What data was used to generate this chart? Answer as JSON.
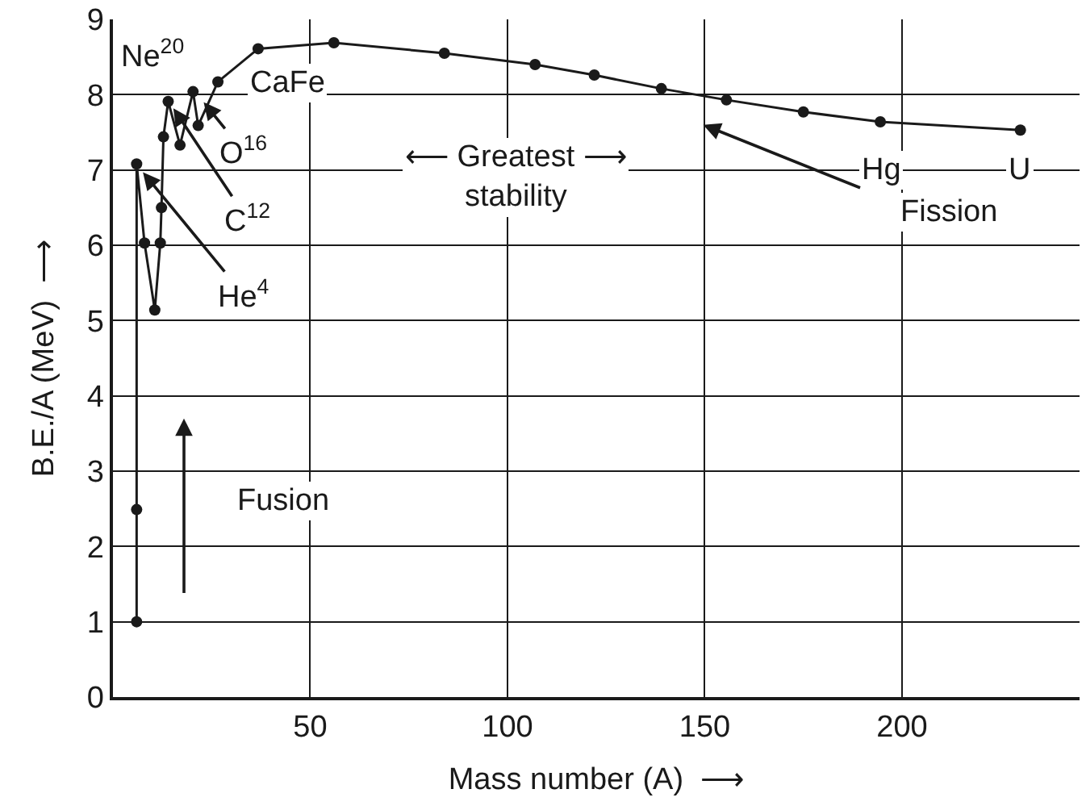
{
  "chart_data": {
    "type": "line",
    "xlabel": "Mass number (A)  ⟶",
    "ylabel": "B.E./A (MeV)  ⟶",
    "marker": "circle",
    "line_style": "solid",
    "grid": true,
    "x": [
      6,
      6,
      6,
      8,
      10.6,
      12,
      12.3,
      12.8,
      14,
      17,
      20.3,
      21.6,
      26.6,
      36.8,
      56,
      84,
      107,
      122,
      139,
      155.5,
      175,
      194.5,
      230
    ],
    "series": [
      {
        "color": "#1a1a1a",
        "values": [
          1.0,
          2.49,
          7.08,
          6.03,
          5.14,
          6.03,
          6.5,
          7.44,
          7.91,
          7.33,
          8.04,
          7.59,
          8.17,
          8.61,
          8.69,
          8.55,
          8.4,
          8.26,
          8.08,
          7.93,
          7.77,
          7.64,
          7.53
        ]
      }
    ],
    "xlim": [
      0,
      245
    ],
    "xticks": [
      50,
      100,
      150,
      200
    ],
    "ylim": [
      0,
      9
    ],
    "yticks": [
      0,
      1,
      2,
      3,
      4,
      5,
      6,
      7,
      8,
      9
    ],
    "annotations": [
      "Ne$^{20}$",
      "CaFe",
      {
        "text": "O$^{16}$",
        "x": 23,
        "y": 7.9
      },
      {
        "text": "C$^{12}$",
        "x": 15.3,
        "y": 7.82
      },
      {
        "text": "He$^{4}$",
        "x": 7.6,
        "y": 6.97
      },
      "⟵ Greatest ⟶\nstability",
      "Hg",
      "U",
      "Fission",
      "Fusion"
    ]
  }
}
